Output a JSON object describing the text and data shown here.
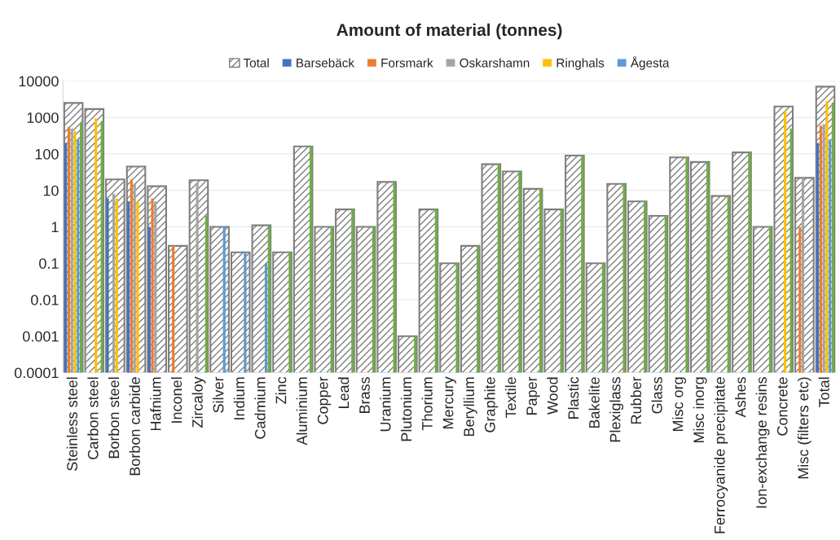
{
  "chart_data": {
    "type": "bar",
    "title": "Amount of material (tonnes)",
    "categories": [
      "Steinless steel",
      "Carbon steel",
      "Borbon steel",
      "Borbon carbide",
      "Hafnium",
      "Inconel",
      "Zircaloy",
      "Silver",
      "Indium",
      "Cadmium",
      "Zinc",
      "Aluminium",
      "Copper",
      "Lead",
      "Brass",
      "Uranium",
      "Plutonium",
      "Thorium",
      "Mercury",
      "Beryllium",
      "Graphite",
      "Textile",
      "Paper",
      "Wood",
      "Plastic",
      "Bakelite",
      "Plexiglass",
      "Rubber",
      "Glass",
      "Misc org",
      "Misc inorg",
      "Ferrocyanide precipitate",
      "Ashes",
      "Ion-exchange resins",
      "Concrete",
      "Misc (filters etc)",
      "Total"
    ],
    "series": [
      {
        "name": "Total",
        "color": "#7f7f7f",
        "values": [
          2500,
          1700,
          20,
          45,
          13,
          0.3,
          19,
          1,
          0.2,
          1.1,
          0.2,
          160,
          1,
          3,
          1,
          17,
          0.001,
          3,
          0.1,
          0.3,
          52,
          33,
          11,
          3,
          90,
          0.1,
          15,
          5,
          2,
          80,
          60,
          7,
          110,
          1,
          2000,
          22,
          7000
        ]
      },
      {
        "name": "Barsebäck",
        "color": "#4472c4",
        "values": [
          200,
          null,
          6,
          5,
          1,
          null,
          null,
          null,
          null,
          null,
          null,
          null,
          null,
          null,
          null,
          null,
          null,
          null,
          null,
          null,
          null,
          null,
          null,
          null,
          null,
          null,
          null,
          null,
          null,
          null,
          null,
          null,
          null,
          null,
          null,
          null,
          200
        ]
      },
      {
        "name": "Forsmark",
        "color": "#ed7d31",
        "values": [
          550,
          null,
          null,
          20,
          6,
          0.3,
          null,
          null,
          null,
          null,
          null,
          null,
          null,
          null,
          null,
          null,
          null,
          null,
          null,
          null,
          null,
          null,
          null,
          null,
          null,
          null,
          null,
          null,
          null,
          null,
          null,
          null,
          null,
          null,
          null,
          1,
          600
        ]
      },
      {
        "name": "Oskarshamn",
        "color": "#a5a5a5",
        "values": [
          500,
          null,
          8,
          15,
          5,
          null,
          16,
          null,
          null,
          null,
          null,
          null,
          null,
          null,
          null,
          null,
          null,
          null,
          null,
          null,
          null,
          null,
          null,
          null,
          null,
          null,
          null,
          null,
          null,
          null,
          null,
          null,
          null,
          null,
          null,
          22,
          650
        ]
      },
      {
        "name": "Ringhals",
        "color": "#ffc000",
        "values": [
          420,
          950,
          6,
          5,
          null,
          null,
          null,
          null,
          null,
          null,
          null,
          null,
          null,
          null,
          null,
          null,
          null,
          null,
          null,
          null,
          null,
          null,
          null,
          null,
          null,
          null,
          null,
          null,
          null,
          null,
          null,
          null,
          null,
          null,
          1500,
          null,
          2800
        ]
      },
      {
        "name": "Ågesta",
        "color": "#5b9bd5",
        "values": [
          250,
          null,
          null,
          null,
          null,
          null,
          null,
          1,
          0.2,
          0.1,
          null,
          null,
          null,
          null,
          null,
          null,
          null,
          null,
          null,
          null,
          null,
          null,
          null,
          null,
          null,
          null,
          null,
          null,
          null,
          null,
          null,
          null,
          null,
          null,
          null,
          null,
          250
        ]
      },
      {
        "color": "#70ad47",
        "values": [
          700,
          800,
          null,
          null,
          null,
          null,
          2,
          null,
          null,
          1,
          0.2,
          160,
          1,
          3,
          1,
          17,
          0.001,
          3,
          0.1,
          0.3,
          52,
          33,
          11,
          3,
          90,
          0.1,
          15,
          5,
          2,
          80,
          60,
          7,
          110,
          1,
          500,
          null,
          2600
        ]
      }
    ],
    "log": true,
    "ylim": [
      0.0001,
      10000
    ],
    "yticks": [
      0.0001,
      0.001,
      0.01,
      0.1,
      1,
      10,
      100,
      1000,
      10000
    ],
    "grid": "y",
    "legend": "top"
  }
}
